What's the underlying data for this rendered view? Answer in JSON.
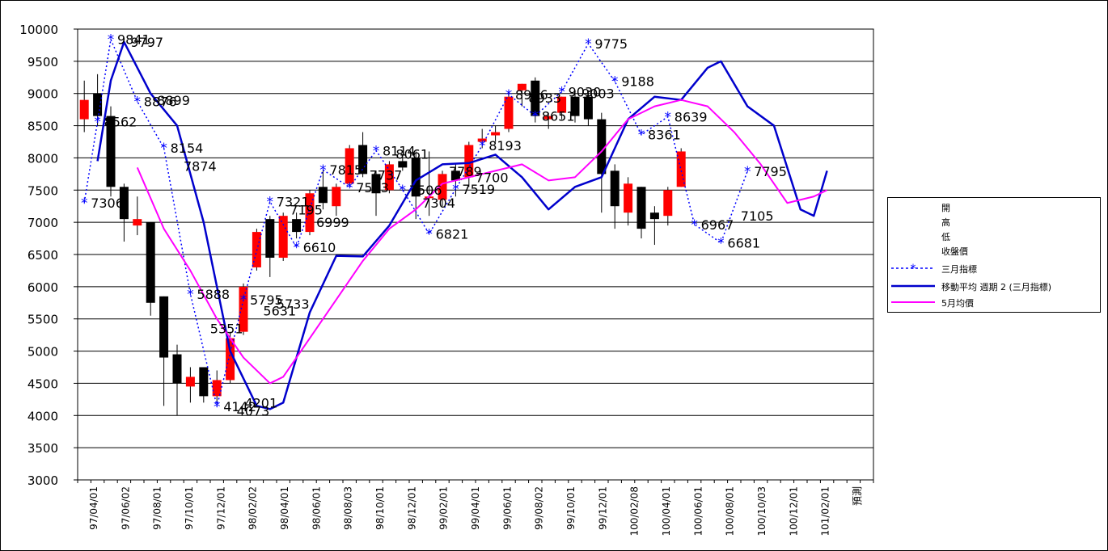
{
  "chart_data": {
    "type": "candlestick",
    "ylim": [
      3000,
      10000
    ],
    "yticks": [
      10000,
      9500,
      9000,
      8500,
      8000,
      7500,
      7000,
      6500,
      6000,
      5500,
      5000,
      4500,
      4000,
      3500,
      3000
    ],
    "x_labels": [
      "97/04/01",
      "97/06/02",
      "97/08/01",
      "97/10/01",
      "97/12/01",
      "98/02/02",
      "98/04/01",
      "98/06/01",
      "98/08/03",
      "98/10/01",
      "98/12/01",
      "99/02/01",
      "99/04/01",
      "99/06/01",
      "99/08/02",
      "99/10/01",
      "99/12/01",
      "100/02/08",
      "100/04/01",
      "100/06/01",
      "100/08/01",
      "100/10/03",
      "100/12/01",
      "101/02/01",
      "預測"
    ],
    "candles": [
      {
        "open": 8600,
        "high": 9200,
        "low": 8400,
        "close": 8900
      },
      {
        "open": 9000,
        "high": 9300,
        "low": 8500,
        "close": 8650
      },
      {
        "open": 8650,
        "high": 8800,
        "low": 7400,
        "close": 7550
      },
      {
        "open": 7550,
        "high": 7600,
        "low": 6700,
        "close": 7050
      },
      {
        "open": 6950,
        "high": 7400,
        "low": 6800,
        "close": 7050
      },
      {
        "open": 7000,
        "high": 7000,
        "low": 5550,
        "close": 5750
      },
      {
        "open": 5850,
        "high": 5850,
        "low": 4150,
        "close": 4900
      },
      {
        "open": 4950,
        "high": 5100,
        "low": 4000,
        "close": 4500
      },
      {
        "open": 4450,
        "high": 4750,
        "low": 4200,
        "close": 4600
      },
      {
        "open": 4750,
        "high": 4750,
        "low": 4200,
        "close": 4300
      },
      {
        "open": 4300,
        "high": 4700,
        "low": 4200,
        "close": 4550
      },
      {
        "open": 4550,
        "high": 5300,
        "low": 4500,
        "close": 5200
      },
      {
        "open": 5300,
        "high": 6050,
        "low": 5250,
        "close": 6000
      },
      {
        "open": 6300,
        "high": 6900,
        "low": 6250,
        "close": 6850
      },
      {
        "open": 7050,
        "high": 7100,
        "low": 6150,
        "close": 6450
      },
      {
        "open": 6450,
        "high": 7150,
        "low": 6400,
        "close": 7100
      },
      {
        "open": 7050,
        "high": 7150,
        "low": 6750,
        "close": 6850
      },
      {
        "open": 6850,
        "high": 7500,
        "low": 6800,
        "close": 7450
      },
      {
        "open": 7550,
        "high": 7800,
        "low": 7200,
        "close": 7300
      },
      {
        "open": 7250,
        "high": 7600,
        "low": 7100,
        "close": 7550
      },
      {
        "open": 7600,
        "high": 8200,
        "low": 7550,
        "close": 8150
      },
      {
        "open": 8200,
        "high": 8400,
        "low": 7700,
        "close": 7750
      },
      {
        "open": 7750,
        "high": 7800,
        "low": 7100,
        "close": 7450
      },
      {
        "open": 7500,
        "high": 7950,
        "low": 7450,
        "close": 7900
      },
      {
        "open": 7950,
        "high": 8000,
        "low": 7800,
        "close": 7850
      },
      {
        "open": 8000,
        "high": 8100,
        "low": 7050,
        "close": 7400
      },
      {
        "open": 7400,
        "high": 8100,
        "low": 7100,
        "close": 7400
      },
      {
        "open": 7350,
        "high": 7800,
        "low": 7250,
        "close": 7750
      },
      {
        "open": 7800,
        "high": 7900,
        "low": 7400,
        "close": 7650
      },
      {
        "open": 7700,
        "high": 8250,
        "low": 7550,
        "close": 8200
      },
      {
        "open": 8250,
        "high": 8450,
        "low": 8150,
        "close": 8300
      },
      {
        "open": 8350,
        "high": 8500,
        "low": 8250,
        "close": 8400
      },
      {
        "open": 8450,
        "high": 9000,
        "low": 8400,
        "close": 8950
      },
      {
        "open": 9050,
        "high": 9150,
        "low": 8800,
        "close": 9150
      },
      {
        "open": 9200,
        "high": 9250,
        "low": 8550,
        "close": 8650
      },
      {
        "open": 8600,
        "high": 8700,
        "low": 8450,
        "close": 8650
      },
      {
        "open": 8700,
        "high": 8950,
        "low": 8600,
        "close": 8950
      },
      {
        "open": 8950,
        "high": 9000,
        "low": 8550,
        "close": 8650
      },
      {
        "open": 8950,
        "high": 9050,
        "low": 8500,
        "close": 8600
      },
      {
        "open": 8600,
        "high": 8700,
        "low": 7150,
        "close": 7750
      },
      {
        "open": 7800,
        "high": 7900,
        "low": 6900,
        "close": 7250
      },
      {
        "open": 7150,
        "high": 7700,
        "low": 6950,
        "close": 7600
      },
      {
        "open": 7550,
        "high": 7550,
        "low": 6750,
        "close": 6900
      },
      {
        "open": 7150,
        "high": 7250,
        "low": 6650,
        "close": 7050
      },
      {
        "open": 7100,
        "high": 7550,
        "low": 6950,
        "close": 7500
      },
      {
        "open": 7550,
        "high": 8150,
        "low": 7550,
        "close": 8100
      }
    ],
    "series": [
      {
        "name": "三月指標",
        "color": "#0000ff",
        "style": "dotted-star",
        "points": [
          {
            "i": 0,
            "y": 7306,
            "label": "7306"
          },
          {
            "i": 1,
            "y": 8562,
            "label": "8562"
          },
          {
            "i": 2,
            "y": 9841,
            "label": "9841"
          },
          {
            "i": 4,
            "y": 8876,
            "label": "8876"
          },
          {
            "i": 6,
            "y": 8154,
            "label": "8154"
          },
          {
            "i": 8,
            "y": 5888,
            "label": "5888"
          },
          {
            "i": 10,
            "y": 4142,
            "label": "4142"
          },
          {
            "i": 12,
            "y": 5795,
            "label": "5795"
          },
          {
            "i": 14,
            "y": 7321,
            "label": "7321"
          },
          {
            "i": 16,
            "y": 6610,
            "label": "6610"
          },
          {
            "i": 18,
            "y": 7815,
            "label": "7815"
          },
          {
            "i": 20,
            "y": 7543,
            "label": "7543"
          },
          {
            "i": 22,
            "y": 8114,
            "label": "8114"
          },
          {
            "i": 24,
            "y": 7506,
            "label": "7506"
          },
          {
            "i": 26,
            "y": 6821,
            "label": "6821"
          },
          {
            "i": 28,
            "y": 7519,
            "label": "7519"
          },
          {
            "i": 30,
            "y": 8193,
            "label": "8193"
          },
          {
            "i": 32,
            "y": 8986,
            "label": "8986"
          },
          {
            "i": 34,
            "y": 8651,
            "label": "8651"
          },
          {
            "i": 36,
            "y": 9030,
            "label": "9030"
          },
          {
            "i": 38,
            "y": 9775,
            "label": "9775"
          },
          {
            "i": 40,
            "y": 9188,
            "label": "9188"
          },
          {
            "i": 42,
            "y": 8361,
            "label": "8361"
          },
          {
            "i": 44,
            "y": 8639,
            "label": "8639"
          },
          {
            "i": 46,
            "y": 6967,
            "label": "6967"
          },
          {
            "i": 48,
            "y": 6681,
            "label": "6681"
          },
          {
            "i": 50,
            "y": 7795,
            "label": "7795"
          }
        ]
      },
      {
        "name": "移動平均 週期 2 (三月指標)",
        "color": "#0000cc",
        "style": "solid-thick",
        "points": [
          [
            1,
            7950
          ],
          [
            2,
            9200
          ],
          [
            3,
            9800
          ],
          [
            5,
            9000
          ],
          [
            7,
            8500
          ],
          [
            9,
            7000
          ],
          [
            11,
            5000
          ],
          [
            13,
            4150
          ],
          [
            14,
            4100
          ],
          [
            15,
            4200
          ],
          [
            17,
            5600
          ],
          [
            19,
            6480
          ],
          [
            21,
            6470
          ],
          [
            23,
            6950
          ],
          [
            25,
            7650
          ],
          [
            27,
            7900
          ],
          [
            29,
            7920
          ],
          [
            31,
            8050
          ],
          [
            33,
            7700
          ],
          [
            35,
            7200
          ],
          [
            37,
            7550
          ],
          [
            39,
            7700
          ],
          [
            41,
            8600
          ],
          [
            43,
            8950
          ],
          [
            45,
            8900
          ],
          [
            47,
            9400
          ],
          [
            48,
            9500
          ],
          [
            50,
            8800
          ],
          [
            52,
            8500
          ],
          [
            54,
            7200
          ],
          [
            55,
            7100
          ],
          [
            56,
            7800
          ]
        ]
      },
      {
        "name": "5月均價",
        "color": "#ff00ff",
        "style": "solid",
        "points": [
          [
            4,
            7850
          ],
          [
            6,
            6900
          ],
          [
            8,
            6250
          ],
          [
            10,
            5500
          ],
          [
            12,
            4900
          ],
          [
            14,
            4500
          ],
          [
            15,
            4600
          ],
          [
            17,
            5200
          ],
          [
            19,
            5800
          ],
          [
            21,
            6400
          ],
          [
            23,
            6900
          ],
          [
            25,
            7200
          ],
          [
            27,
            7600
          ],
          [
            29,
            7700
          ],
          [
            31,
            7800
          ],
          [
            33,
            7900
          ],
          [
            35,
            7650
          ],
          [
            37,
            7700
          ],
          [
            39,
            8100
          ],
          [
            41,
            8600
          ],
          [
            43,
            8800
          ],
          [
            45,
            8900
          ],
          [
            47,
            8800
          ],
          [
            49,
            8400
          ],
          [
            51,
            7900
          ],
          [
            53,
            7300
          ],
          [
            55,
            7400
          ],
          [
            56,
            7500
          ]
        ]
      }
    ],
    "extra_labels": [
      {
        "i": 3,
        "y": 9797,
        "text": "9797"
      },
      {
        "i": 5,
        "y": 8899,
        "text": "8899"
      },
      {
        "i": 7,
        "y": 7874,
        "text": "7874"
      },
      {
        "i": 9,
        "y": 5351,
        "text": "5351"
      },
      {
        "i": 11,
        "y": 4073,
        "text": "4073"
      },
      {
        "i": 11.6,
        "y": 4201,
        "text": "4201"
      },
      {
        "i": 13,
        "y": 5631,
        "text": "5631"
      },
      {
        "i": 14,
        "y": 5733,
        "text": "5733"
      },
      {
        "i": 15,
        "y": 7195,
        "text": "7195"
      },
      {
        "i": 17,
        "y": 6999,
        "text": "6999"
      },
      {
        "i": 21,
        "y": 7737,
        "text": "7737"
      },
      {
        "i": 23,
        "y": 8061,
        "text": "8061"
      },
      {
        "i": 25,
        "y": 7304,
        "text": "7304"
      },
      {
        "i": 27,
        "y": 7789,
        "text": "7789"
      },
      {
        "i": 29,
        "y": 7700,
        "text": "7700"
      },
      {
        "i": 33,
        "y": 8933,
        "text": "8933"
      },
      {
        "i": 37,
        "y": 9003,
        "text": "9003"
      },
      {
        "i": 49,
        "y": 7105,
        "text": "7105"
      }
    ]
  },
  "legend": {
    "items": [
      {
        "label": "開",
        "style": "none"
      },
      {
        "label": "高",
        "style": "none"
      },
      {
        "label": "低",
        "style": "none"
      },
      {
        "label": "收盤價",
        "style": "none"
      },
      {
        "label": "三月指標",
        "style": "dotted-star",
        "color": "#0000ff"
      },
      {
        "label": "移動平均 週期 2 (三月指標)",
        "style": "solid-thick",
        "color": "#0000cc"
      },
      {
        "label": "5月均價",
        "style": "solid",
        "color": "#ff00ff"
      }
    ]
  },
  "colors": {
    "up": "#ff0000",
    "down": "#000000",
    "grid": "#000000",
    "plot_bg": "#ffffff"
  }
}
